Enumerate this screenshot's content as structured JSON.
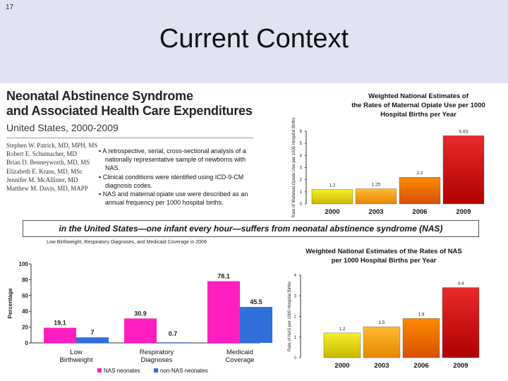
{
  "slide_number": "17",
  "title": "Current Context",
  "article": {
    "title_line1": "Neonatal Abstinence Syndrome",
    "title_line2": "and Associated Health Care Expenditures",
    "subtitle": "United States, 2000-2009",
    "authors": [
      "Stephen W. Patrick, MD, MPH, MS",
      "Robert E. Schumacher, MD",
      "Brian D. Benneyworth, MD, MS",
      "Elizabeth E. Krans, MD, MSc",
      "Jennifer M. McAllister, MD",
      "Matthew M. Davis, MD, MAPP"
    ],
    "bullets": [
      "A retrospective, serial, cross-sectional analysis of a nationally representative sample of newborns with NAS.",
      "Clinical conditions were identified using ICD-9-CM diagnosis codes.",
      "NAS and maternal opiate use were described as an annual frequency per 1000 hospital births."
    ]
  },
  "banner": "in the United States—one infant every hour—suffers from neonatal abstinence syndrome (NAS)",
  "colors": {
    "yellow": "#f2e400",
    "orange": "#ff9a00",
    "orange_dark": "#ee6a00",
    "red": "#d81010",
    "pink": "#ff1fc0",
    "blue": "#2f6fd8",
    "title_band": "#dfe3f2"
  },
  "chart_data": [
    {
      "type": "bar",
      "title": "Weighted National Estimates of the Rates of Maternal Opiate Use per 1000 Hospital Births per Year",
      "ylabel": "Rate of Maternal Opiate Use per 1000 Hospital Births",
      "categories": [
        "2000",
        "2003",
        "2006",
        "2009"
      ],
      "values": [
        1.2,
        1.25,
        2.2,
        5.63
      ],
      "value_labels": [
        "1.2",
        "1.25",
        "2.2",
        "5.63"
      ],
      "yticks": [
        "0",
        "1",
        "2",
        "3",
        "4",
        "5",
        "6"
      ],
      "ylim": [
        0,
        6
      ],
      "grid": false
    },
    {
      "type": "bar",
      "title": "Low Birthweight, Respiratory Diagnoses, and Medicaid Coverage in 2009",
      "ylabel": "Percentage",
      "categories": [
        "Low Birthweight",
        "Respiratory Diagnoses",
        "Medicaid Coverage"
      ],
      "category_lines": [
        [
          "Low",
          "Birthweight"
        ],
        [
          "Respiratory",
          "Diagnoses"
        ],
        [
          "Medicaid",
          "Coverage"
        ]
      ],
      "series": [
        {
          "name": "NAS neonates",
          "values": [
            19.1,
            30.9,
            78.1
          ],
          "value_labels": [
            "19.1",
            "30.9",
            "78.1"
          ]
        },
        {
          "name": "non-NAS neonates",
          "values": [
            7,
            0.7,
            45.5
          ],
          "value_labels": [
            "7",
            "0.7",
            "45.5"
          ]
        }
      ],
      "yticks": [
        "0",
        "20",
        "40",
        "60",
        "80",
        "100"
      ],
      "ylim": [
        0,
        100
      ],
      "legend": "bottom",
      "grid": false
    },
    {
      "type": "bar",
      "title": "Weighted National Estimates of the Rates of NAS per 1000 Hospital Births per Year",
      "ylabel": "Rate of NAS per 1000 Hospital Births",
      "categories": [
        "2000",
        "2003",
        "2006",
        "2009"
      ],
      "values": [
        1.2,
        1.5,
        1.9,
        3.4
      ],
      "value_labels": [
        "1.2",
        "1.5",
        "1.9",
        "3.4"
      ],
      "yticks": [
        "0",
        "1",
        "2",
        "3",
        "4"
      ],
      "ylim": [
        0,
        4
      ],
      "grid": false
    }
  ]
}
